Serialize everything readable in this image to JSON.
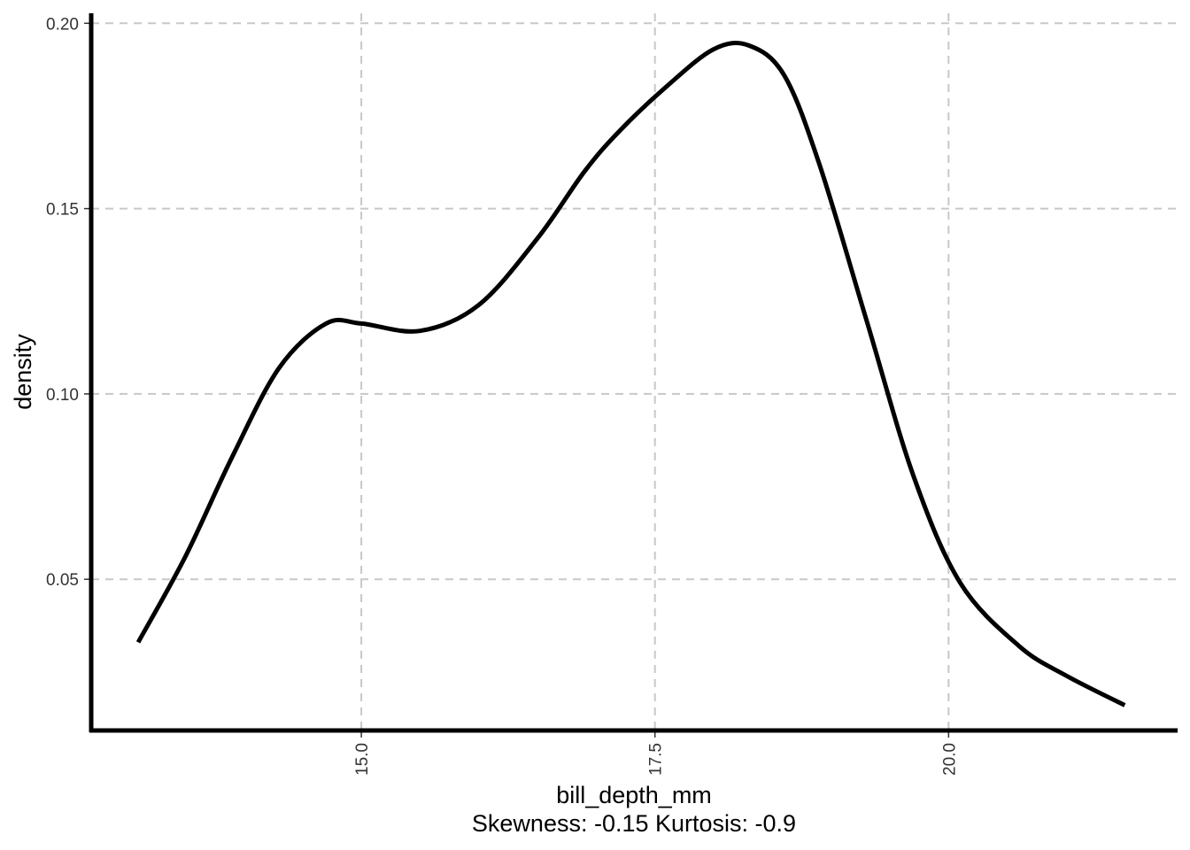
{
  "chart_data": {
    "type": "line",
    "title": "",
    "xlabel": "bill_depth_mm",
    "subtitle": "Skewness: -0.15 Kurtosis: -0.9",
    "ylabel": "density",
    "xlim": [
      12.7,
      21.95
    ],
    "ylim": [
      0.0092,
      0.2027
    ],
    "x_ticks": [
      15.0,
      17.5,
      20.0
    ],
    "x_tick_labels": [
      "15.0",
      "17.5",
      "20.0"
    ],
    "y_ticks": [
      0.05,
      0.1,
      0.15,
      0.2
    ],
    "y_tick_labels": [
      "0.05",
      "0.10",
      "0.15",
      "0.20"
    ],
    "grid": true,
    "grid_style": "dashed",
    "series": [
      {
        "color": "#000000",
        "x": [
          13.1,
          13.5,
          13.9,
          14.3,
          14.7,
          15.0,
          15.5,
          16.0,
          16.5,
          16.9,
          17.2,
          17.6,
          18.0,
          18.3,
          18.6,
          18.9,
          19.3,
          19.7,
          20.1,
          20.6,
          21.0,
          21.5
        ],
        "y": [
          0.033,
          0.056,
          0.083,
          0.107,
          0.119,
          0.119,
          0.117,
          0.124,
          0.142,
          0.16,
          0.171,
          0.183,
          0.193,
          0.194,
          0.186,
          0.162,
          0.12,
          0.078,
          0.049,
          0.032,
          0.024,
          0.016
        ]
      }
    ]
  }
}
